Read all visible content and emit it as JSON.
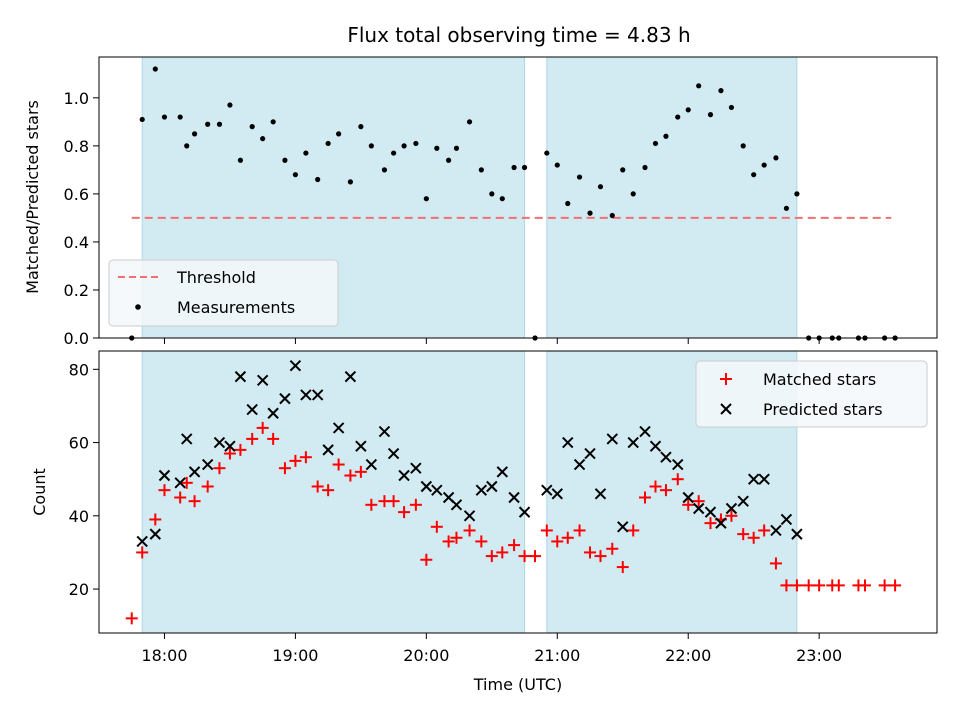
{
  "title": "Flux total observing time = 4.83 h",
  "colors": {
    "band": "#add8e6",
    "threshold": "#f07070",
    "measurement": "#000000",
    "matched": "#ff0000",
    "predicted": "#000000"
  },
  "chart_data": [
    {
      "type": "scatter",
      "ylabel": "Matched/Predicted stars",
      "xlabel": "",
      "xlim": [
        17.5,
        23.9
      ],
      "ylim": [
        0,
        1.17
      ],
      "yticks": [
        0.0,
        0.2,
        0.4,
        0.6,
        0.8,
        1.0
      ],
      "yticklabels": [
        "0.0",
        "0.2",
        "0.4",
        "0.6",
        "0.8",
        "1.0"
      ],
      "xticks": [
        18,
        19,
        20,
        21,
        22,
        23
      ],
      "bands": [
        [
          17.83,
          20.75
        ],
        [
          20.92,
          22.83
        ]
      ],
      "threshold": {
        "name": "Threshold",
        "value": 0.5,
        "x": [
          17.75,
          23.55
        ]
      },
      "legend": {
        "placement": "lower-left",
        "entries": [
          "Threshold",
          "Measurements"
        ]
      },
      "series": [
        {
          "name": "Measurements",
          "marker": "dot",
          "points": [
            [
              17.75,
              0.0
            ],
            [
              17.83,
              0.91
            ],
            [
              17.93,
              1.12
            ],
            [
              18.0,
              0.92
            ],
            [
              18.12,
              0.92
            ],
            [
              18.17,
              0.8
            ],
            [
              18.23,
              0.85
            ],
            [
              18.33,
              0.89
            ],
            [
              18.42,
              0.89
            ],
            [
              18.5,
              0.97
            ],
            [
              18.58,
              0.74
            ],
            [
              18.67,
              0.88
            ],
            [
              18.75,
              0.83
            ],
            [
              18.83,
              0.9
            ],
            [
              18.92,
              0.74
            ],
            [
              19.0,
              0.68
            ],
            [
              19.08,
              0.77
            ],
            [
              19.17,
              0.66
            ],
            [
              19.25,
              0.81
            ],
            [
              19.33,
              0.85
            ],
            [
              19.42,
              0.65
            ],
            [
              19.5,
              0.88
            ],
            [
              19.58,
              0.8
            ],
            [
              19.68,
              0.7
            ],
            [
              19.75,
              0.77
            ],
            [
              19.83,
              0.8
            ],
            [
              19.92,
              0.81
            ],
            [
              20.0,
              0.58
            ],
            [
              20.08,
              0.79
            ],
            [
              20.17,
              0.74
            ],
            [
              20.23,
              0.79
            ],
            [
              20.33,
              0.9
            ],
            [
              20.42,
              0.7
            ],
            [
              20.5,
              0.6
            ],
            [
              20.58,
              0.58
            ],
            [
              20.67,
              0.71
            ],
            [
              20.75,
              0.71
            ],
            [
              20.83,
              0.0
            ],
            [
              20.92,
              0.77
            ],
            [
              21.0,
              0.72
            ],
            [
              21.08,
              0.56
            ],
            [
              21.17,
              0.67
            ],
            [
              21.25,
              0.52
            ],
            [
              21.33,
              0.63
            ],
            [
              21.42,
              0.51
            ],
            [
              21.5,
              0.7
            ],
            [
              21.58,
              0.6
            ],
            [
              21.67,
              0.71
            ],
            [
              21.75,
              0.81
            ],
            [
              21.83,
              0.84
            ],
            [
              21.92,
              0.92
            ],
            [
              22.0,
              0.95
            ],
            [
              22.08,
              1.05
            ],
            [
              22.17,
              0.93
            ],
            [
              22.25,
              1.03
            ],
            [
              22.33,
              0.96
            ],
            [
              22.42,
              0.8
            ],
            [
              22.5,
              0.68
            ],
            [
              22.58,
              0.72
            ],
            [
              22.67,
              0.75
            ],
            [
              22.75,
              0.54
            ],
            [
              22.83,
              0.6
            ],
            [
              22.92,
              0.0
            ],
            [
              23.0,
              0.0
            ],
            [
              23.1,
              0.0
            ],
            [
              23.15,
              0.0
            ],
            [
              23.3,
              0.0
            ],
            [
              23.35,
              0.0
            ],
            [
              23.5,
              0.0
            ],
            [
              23.58,
              0.0
            ]
          ]
        }
      ]
    },
    {
      "type": "scatter",
      "ylabel": "Count",
      "xlabel": "Time (UTC)",
      "xlim": [
        17.5,
        23.9
      ],
      "ylim": [
        8,
        85
      ],
      "yticks": [
        20,
        40,
        60,
        80
      ],
      "yticklabels": [
        "20",
        "40",
        "60",
        "80"
      ],
      "xticks": [
        18,
        19,
        20,
        21,
        22,
        23
      ],
      "xticklabels": [
        "18:00",
        "19:00",
        "20:00",
        "21:00",
        "22:00",
        "23:00"
      ],
      "bands": [
        [
          17.83,
          20.75
        ],
        [
          20.92,
          22.83
        ]
      ],
      "legend": {
        "placement": "top-right",
        "entries": [
          "Matched stars",
          "Predicted stars"
        ]
      },
      "series": [
        {
          "name": "Matched stars",
          "marker": "plus",
          "points": [
            [
              17.75,
              12
            ],
            [
              17.83,
              30
            ],
            [
              17.93,
              39
            ],
            [
              18.0,
              47
            ],
            [
              18.12,
              45
            ],
            [
              18.17,
              49
            ],
            [
              18.23,
              44
            ],
            [
              18.33,
              48
            ],
            [
              18.42,
              53
            ],
            [
              18.5,
              57
            ],
            [
              18.58,
              58
            ],
            [
              18.67,
              61
            ],
            [
              18.75,
              64
            ],
            [
              18.83,
              61
            ],
            [
              18.92,
              53
            ],
            [
              19.0,
              55
            ],
            [
              19.08,
              56
            ],
            [
              19.17,
              48
            ],
            [
              19.25,
              47
            ],
            [
              19.33,
              54
            ],
            [
              19.42,
              51
            ],
            [
              19.5,
              52
            ],
            [
              19.58,
              43
            ],
            [
              19.68,
              44
            ],
            [
              19.75,
              44
            ],
            [
              19.83,
              41
            ],
            [
              19.92,
              43
            ],
            [
              20.0,
              28
            ],
            [
              20.08,
              37
            ],
            [
              20.17,
              33
            ],
            [
              20.23,
              34
            ],
            [
              20.33,
              36
            ],
            [
              20.42,
              33
            ],
            [
              20.5,
              29
            ],
            [
              20.58,
              30
            ],
            [
              20.67,
              32
            ],
            [
              20.75,
              29
            ],
            [
              20.83,
              29
            ],
            [
              20.92,
              36
            ],
            [
              21.0,
              33
            ],
            [
              21.08,
              34
            ],
            [
              21.17,
              36
            ],
            [
              21.25,
              30
            ],
            [
              21.33,
              29
            ],
            [
              21.42,
              31
            ],
            [
              21.5,
              26
            ],
            [
              21.58,
              36
            ],
            [
              21.67,
              45
            ],
            [
              21.75,
              48
            ],
            [
              21.83,
              47
            ],
            [
              21.92,
              50
            ],
            [
              22.0,
              43
            ],
            [
              22.08,
              44
            ],
            [
              22.17,
              38
            ],
            [
              22.25,
              39
            ],
            [
              22.33,
              40
            ],
            [
              22.42,
              35
            ],
            [
              22.5,
              34
            ],
            [
              22.58,
              36
            ],
            [
              22.67,
              27
            ],
            [
              22.75,
              21
            ],
            [
              22.83,
              21
            ],
            [
              22.92,
              21
            ],
            [
              23.0,
              21
            ],
            [
              23.1,
              21
            ],
            [
              23.15,
              21
            ],
            [
              23.3,
              21
            ],
            [
              23.35,
              21
            ],
            [
              23.5,
              21
            ],
            [
              23.58,
              21
            ]
          ]
        },
        {
          "name": "Predicted stars",
          "marker": "x",
          "points": [
            [
              17.83,
              33
            ],
            [
              17.93,
              35
            ],
            [
              18.0,
              51
            ],
            [
              18.12,
              49
            ],
            [
              18.17,
              61
            ],
            [
              18.23,
              52
            ],
            [
              18.33,
              54
            ],
            [
              18.42,
              60
            ],
            [
              18.5,
              59
            ],
            [
              18.58,
              78
            ],
            [
              18.67,
              69
            ],
            [
              18.75,
              77
            ],
            [
              18.83,
              68
            ],
            [
              18.92,
              72
            ],
            [
              19.0,
              81
            ],
            [
              19.08,
              73
            ],
            [
              19.17,
              73
            ],
            [
              19.25,
              58
            ],
            [
              19.33,
              64
            ],
            [
              19.42,
              78
            ],
            [
              19.5,
              59
            ],
            [
              19.58,
              54
            ],
            [
              19.68,
              63
            ],
            [
              19.75,
              57
            ],
            [
              19.83,
              51
            ],
            [
              19.92,
              53
            ],
            [
              20.0,
              48
            ],
            [
              20.08,
              47
            ],
            [
              20.17,
              45
            ],
            [
              20.23,
              43
            ],
            [
              20.33,
              40
            ],
            [
              20.42,
              47
            ],
            [
              20.5,
              48
            ],
            [
              20.58,
              52
            ],
            [
              20.67,
              45
            ],
            [
              20.75,
              41
            ],
            [
              20.92,
              47
            ],
            [
              21.0,
              46
            ],
            [
              21.08,
              60
            ],
            [
              21.17,
              54
            ],
            [
              21.25,
              57
            ],
            [
              21.33,
              46
            ],
            [
              21.42,
              61
            ],
            [
              21.5,
              37
            ],
            [
              21.58,
              60
            ],
            [
              21.67,
              63
            ],
            [
              21.75,
              59
            ],
            [
              21.83,
              56
            ],
            [
              21.92,
              54
            ],
            [
              22.0,
              45
            ],
            [
              22.08,
              42
            ],
            [
              22.17,
              41
            ],
            [
              22.25,
              38
            ],
            [
              22.33,
              42
            ],
            [
              22.42,
              44
            ],
            [
              22.5,
              50
            ],
            [
              22.58,
              50
            ],
            [
              22.67,
              36
            ],
            [
              22.75,
              39
            ],
            [
              22.83,
              35
            ]
          ]
        }
      ]
    }
  ]
}
